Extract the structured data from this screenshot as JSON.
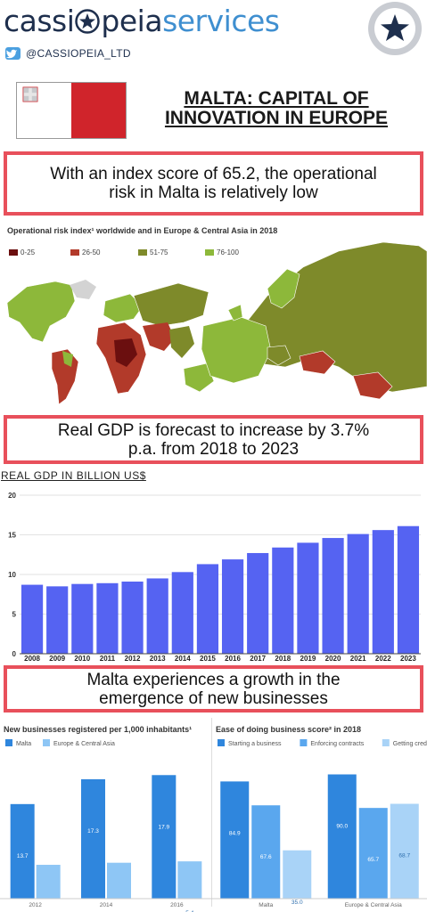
{
  "header": {
    "brand_part1": "cassi",
    "brand_part2": "peia",
    "brand_part3": "services",
    "twitter_handle": "@CASSIOPEIA_LTD"
  },
  "title": "MALTA: CAPITAL OF INNOVATION IN EUROPE",
  "callouts": [
    "With an index score of 65.2, the operational risk in Malta is relatively low",
    "Real GDP is forecast to increase by 3.7% p.a. from 2018 to 2023",
    "Malta experiences a growth in the emergence of new businesses"
  ],
  "colors": {
    "brand_navy": "#1e2f4d",
    "brand_blue": "#3f8fd0",
    "callout_border": "#e8505b",
    "malta_red": "#d0242b",
    "gdp_bar": "#5563f2",
    "malta_bar": "#2f86dd",
    "region_bar": "#8ec6f5"
  },
  "map": {
    "title": "Operational risk index¹ worldwide and in Europe & Central Asia in 2018",
    "legend": [
      {
        "label": "0-25",
        "color": "#6b0f0f"
      },
      {
        "label": "26-50",
        "color": "#b23a2a"
      },
      {
        "label": "51-75",
        "color": "#7e8a2a"
      },
      {
        "label": "76-100",
        "color": "#8db83a"
      }
    ]
  },
  "gdp_heading": "REAL GDP IN BILLION US$",
  "chart_data": [
    {
      "type": "bar",
      "title": "",
      "categories": [
        "2008",
        "2009",
        "2010",
        "2011",
        "2012",
        "2013",
        "2014",
        "2015",
        "2016",
        "2017",
        "2018",
        "2019",
        "2020",
        "2021",
        "2022",
        "2023"
      ],
      "values": [
        8.7,
        8.5,
        8.8,
        8.9,
        9.1,
        9.5,
        10.3,
        11.3,
        11.9,
        12.7,
        13.4,
        14.0,
        14.6,
        15.1,
        15.6,
        16.1
      ],
      "ylim": [
        0,
        20
      ],
      "yticks": [
        "0",
        "5",
        "10",
        "15",
        "20"
      ],
      "grid": true
    },
    {
      "type": "bar",
      "title": "New businesses registered per 1,000 inhabitants¹",
      "categories": [
        "2012",
        "2014",
        "2016"
      ],
      "series": [
        {
          "name": "Malta",
          "values": [
            13.7,
            17.3,
            17.9
          ]
        },
        {
          "name": "Europe & Central Asia",
          "values": [
            4.9,
            5.2,
            5.4
          ]
        }
      ],
      "ylim": [
        0,
        20
      ],
      "legend": "top"
    },
    {
      "type": "bar",
      "title": "Ease of doing business score² in 2018",
      "categories": [
        "Malta",
        "Europe & Central Asia"
      ],
      "series": [
        {
          "name": "Starting a business",
          "values": [
            84.9,
            90.0
          ]
        },
        {
          "name": "Enforcing contracts",
          "values": [
            67.6,
            65.7
          ]
        },
        {
          "name": "Getting credit",
          "values": [
            35.0,
            68.7
          ]
        }
      ],
      "ylim": [
        0,
        100
      ],
      "legend": "top"
    }
  ]
}
